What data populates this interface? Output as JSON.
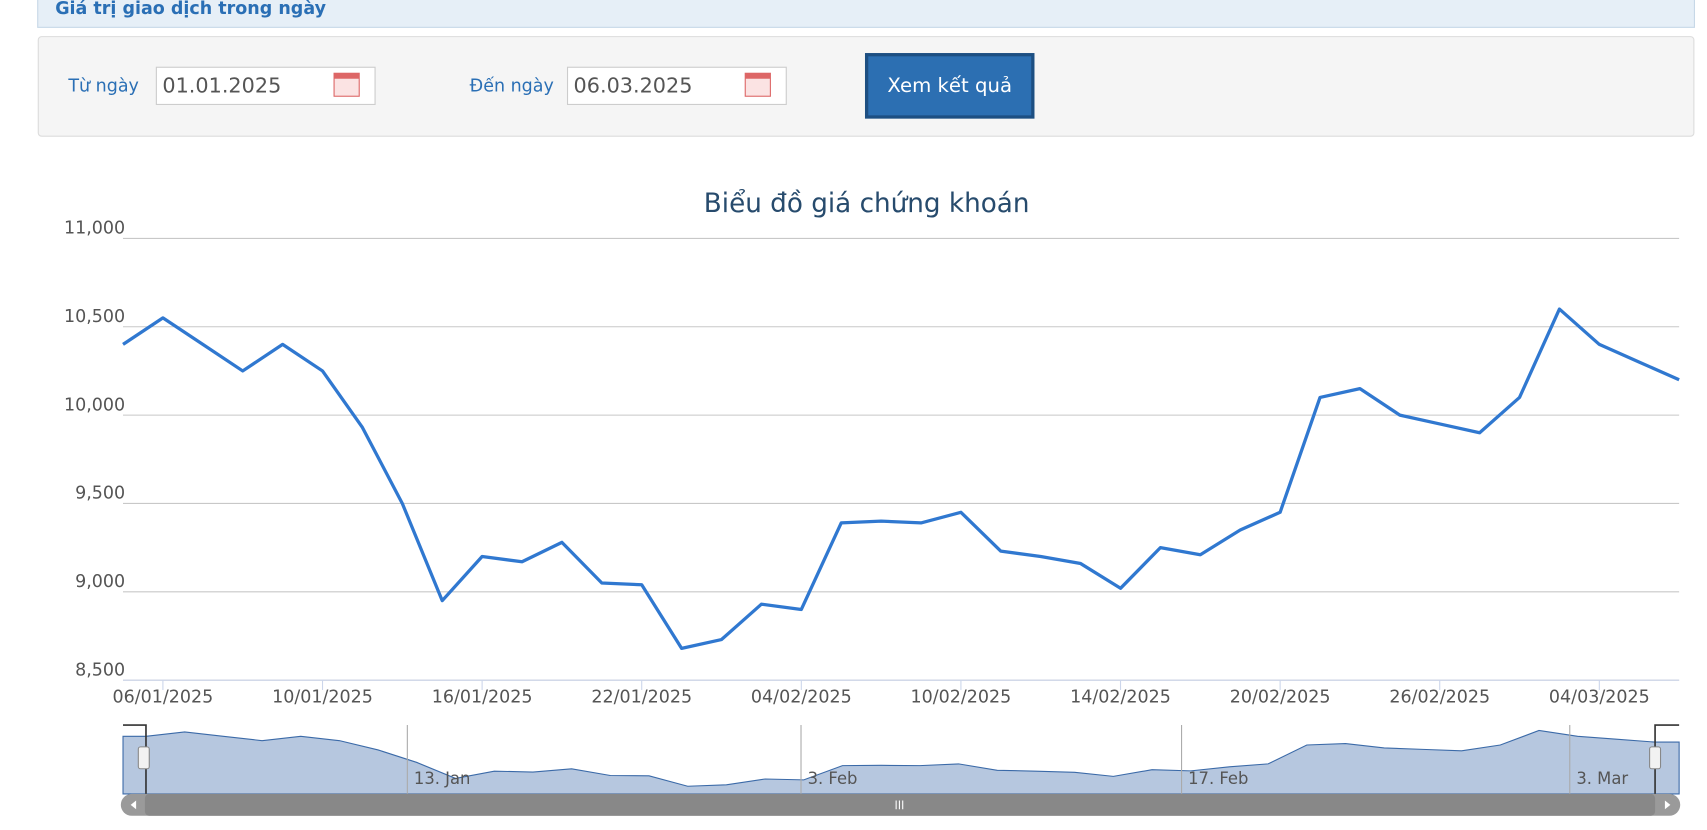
{
  "header": {
    "title": "Giá trị giao dịch trong ngày"
  },
  "form": {
    "from_label": "Từ ngày",
    "from_value": "01.01.2025",
    "to_label": "Đến ngày",
    "to_value": "06.03.2025",
    "submit": "Xem kết quả"
  },
  "chart_data": {
    "type": "line",
    "title": "Biểu đồ giá chứng khoán",
    "x": [
      "03/01/2025",
      "06/01/2025",
      "07/01/2025",
      "08/01/2025",
      "09/01/2025",
      "10/01/2025",
      "13/01/2025",
      "14/01/2025",
      "15/01/2025",
      "16/01/2025",
      "17/01/2025",
      "20/01/2025",
      "21/01/2025",
      "22/01/2025",
      "23/01/2025",
      "24/01/2025",
      "03/02/2025",
      "04/02/2025",
      "05/02/2025",
      "06/02/2025",
      "07/02/2025",
      "10/02/2025",
      "11/02/2025",
      "12/02/2025",
      "13/02/2025",
      "14/02/2025",
      "17/02/2025",
      "18/02/2025",
      "19/02/2025",
      "20/02/2025",
      "21/02/2025",
      "24/02/2025",
      "25/02/2025",
      "26/02/2025",
      "27/02/2025",
      "28/02/2025",
      "03/03/2025",
      "04/03/2025",
      "05/03/2025",
      "06/03/2025"
    ],
    "series": [
      {
        "color": "#3078d0",
        "values": [
          10400,
          10550,
          10400,
          10250,
          10400,
          10250,
          9930,
          9500,
          8950,
          9200,
          9170,
          9280,
          9050,
          9040,
          8680,
          8730,
          8930,
          8900,
          9390,
          9400,
          9390,
          9450,
          9230,
          9200,
          9160,
          9020,
          9250,
          9210,
          9350,
          9450,
          10100,
          10150,
          10000,
          9950,
          9900,
          10100,
          10600,
          10400,
          10300,
          10200
        ]
      }
    ],
    "ylim": [
      8500,
      11000
    ],
    "yticks": [
      {
        "value": 8500,
        "label": "8,500"
      },
      {
        "value": 9000,
        "label": "9,000"
      },
      {
        "value": 9500,
        "label": "9,500"
      },
      {
        "value": 10000,
        "label": "10,000"
      },
      {
        "value": 10500,
        "label": "10,500"
      },
      {
        "value": 11000,
        "label": "11,000"
      }
    ],
    "xticks": [
      "06/01/2025",
      "10/01/2025",
      "16/01/2025",
      "22/01/2025",
      "04/02/2025",
      "10/02/2025",
      "14/02/2025",
      "20/02/2025",
      "26/02/2025",
      "04/03/2025"
    ],
    "grid": true
  },
  "navigator": {
    "labels": [
      "13. Jan",
      "3. Feb",
      "17. Feb",
      "3. Mar"
    ]
  }
}
